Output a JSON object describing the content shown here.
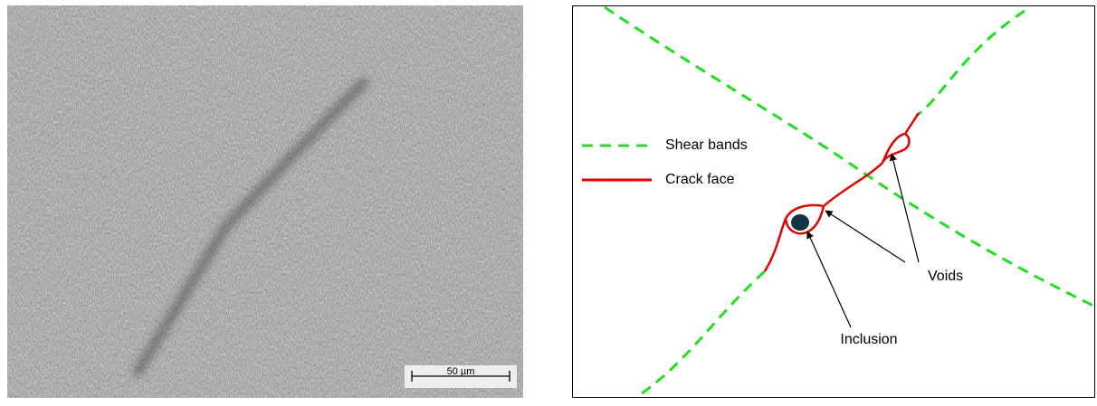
{
  "micrograph": {
    "scale_bar": "50 µm"
  },
  "legend": {
    "items": [
      {
        "label": "Shear bands"
      },
      {
        "label": "Crack face"
      }
    ]
  },
  "annotations": {
    "voids": "Voids",
    "inclusion": "Inclusion"
  }
}
